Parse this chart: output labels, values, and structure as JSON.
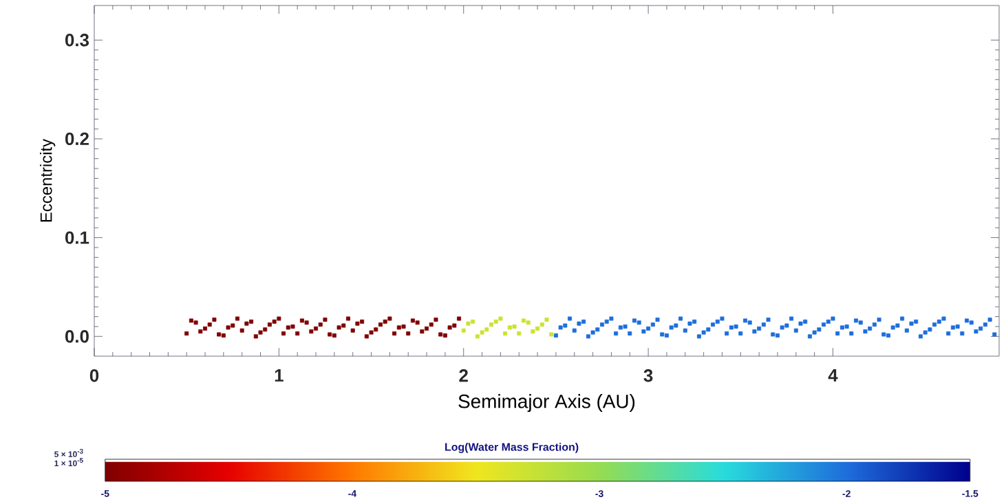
{
  "chart_data": {
    "type": "scatter",
    "xlabel": "Semimajor Axis (AU)",
    "ylabel": "Eccentricity",
    "clabel": "Log(Water Mass Fraction)",
    "xlim": [
      0,
      4.9
    ],
    "ylim": [
      -0.02,
      0.335
    ],
    "xticks": [
      0,
      1,
      2,
      3,
      4
    ],
    "yticks": [
      {
        "value": 0,
        "label": "0.0"
      },
      {
        "value": 0.1,
        "label": "0.1"
      },
      {
        "value": 0.2,
        "label": "0.2"
      },
      {
        "value": 0.3,
        "label": "0.3"
      }
    ],
    "clim": [
      -5,
      -1.5
    ],
    "cticks": [
      -5,
      -4,
      -3,
      -2,
      -1.5
    ],
    "marker": "square",
    "annotations": [
      "5 × 10$^{-3}$",
      "1 × 10$^{-5}$"
    ],
    "x": [
      0.5,
      0.525,
      0.55,
      0.575,
      0.6,
      0.625,
      0.65,
      0.675,
      0.7,
      0.725,
      0.75,
      0.775,
      0.8,
      0.825,
      0.85,
      0.875,
      0.9,
      0.925,
      0.95,
      0.975,
      1,
      1.025,
      1.05,
      1.075,
      1.1,
      1.125,
      1.15,
      1.175,
      1.2,
      1.225,
      1.25,
      1.275,
      1.3,
      1.325,
      1.35,
      1.375,
      1.4,
      1.425,
      1.45,
      1.475,
      1.5,
      1.525,
      1.55,
      1.575,
      1.6,
      1.625,
      1.65,
      1.675,
      1.7,
      1.725,
      1.75,
      1.775,
      1.8,
      1.825,
      1.85,
      1.875,
      1.9,
      1.925,
      1.95,
      1.975,
      2,
      2.025,
      2.05,
      2.075,
      2.1,
      2.125,
      2.15,
      2.175,
      2.2,
      2.225,
      2.25,
      2.275,
      2.3,
      2.325,
      2.35,
      2.375,
      2.4,
      2.425,
      2.45,
      2.475,
      2.5,
      2.525,
      2.55,
      2.575,
      2.6,
      2.625,
      2.65,
      2.675,
      2.7,
      2.725,
      2.75,
      2.775,
      2.8,
      2.825,
      2.85,
      2.875,
      2.9,
      2.925,
      2.95,
      2.975,
      3,
      3.025,
      3.05,
      3.075,
      3.1,
      3.125,
      3.15,
      3.175,
      3.2,
      3.225,
      3.25,
      3.275,
      3.3,
      3.325,
      3.35,
      3.375,
      3.4,
      3.425,
      3.45,
      3.475,
      3.5,
      3.525,
      3.55,
      3.575,
      3.6,
      3.625,
      3.65,
      3.675,
      3.7,
      3.725,
      3.75,
      3.775,
      3.8,
      3.825,
      3.85,
      3.875,
      3.9,
      3.925,
      3.95,
      3.975,
      4,
      4.025,
      4.05,
      4.075,
      4.1,
      4.125,
      4.15,
      4.175,
      4.2,
      4.225,
      4.25,
      4.275,
      4.3,
      4.325,
      4.35,
      4.375,
      4.4,
      4.425,
      4.45,
      4.475,
      4.5,
      4.525,
      4.55,
      4.575,
      4.6,
      4.625,
      4.65,
      4.675,
      4.7,
      4.725,
      4.75,
      4.775,
      4.8,
      4.825,
      4.85,
      4.875
    ],
    "values": [
      0.003,
      0.016,
      0.014,
      0.005,
      0.008,
      0.012,
      0.017,
      0.002,
      0.001,
      0.009,
      0.011,
      0.018,
      0.006,
      0.013,
      0.015,
      0,
      0.004,
      0.007,
      0.012,
      0.015,
      0.018,
      0.003,
      0.009,
      0.01,
      0.003,
      0.016,
      0.014,
      0.005,
      0.008,
      0.012,
      0.017,
      0.002,
      0.001,
      0.009,
      0.011,
      0.018,
      0.006,
      0.013,
      0.015,
      0,
      0.004,
      0.007,
      0.012,
      0.015,
      0.018,
      0.003,
      0.009,
      0.01,
      0.003,
      0.016,
      0.014,
      0.005,
      0.008,
      0.012,
      0.017,
      0.002,
      0.001,
      0.009,
      0.011,
      0.018,
      0.006,
      0.013,
      0.015,
      0,
      0.004,
      0.007,
      0.012,
      0.015,
      0.018,
      0.003,
      0.009,
      0.01,
      0.003,
      0.016,
      0.014,
      0.005,
      0.008,
      0.012,
      0.017,
      0.002,
      0.001,
      0.009,
      0.011,
      0.018,
      0.006,
      0.013,
      0.015,
      0,
      0.004,
      0.007,
      0.012,
      0.015,
      0.018,
      0.003,
      0.009,
      0.01,
      0.003,
      0.016,
      0.014,
      0.005,
      0.008,
      0.012,
      0.017,
      0.002,
      0.001,
      0.009,
      0.011,
      0.018,
      0.006,
      0.013,
      0.015,
      0,
      0.004,
      0.007,
      0.012,
      0.015,
      0.018,
      0.003,
      0.009,
      0.01,
      0.003,
      0.016,
      0.014,
      0.005,
      0.008,
      0.012,
      0.017,
      0.002,
      0.001,
      0.009,
      0.011,
      0.018,
      0.006,
      0.013,
      0.015,
      0,
      0.004,
      0.007,
      0.012,
      0.015,
      0.018,
      0.003,
      0.009,
      0.01,
      0.003,
      0.016,
      0.014,
      0.005,
      0.008,
      0.012,
      0.017,
      0.002,
      0.001,
      0.009,
      0.011,
      0.018,
      0.006,
      0.013,
      0.015,
      0,
      0.004,
      0.007,
      0.012,
      0.015,
      0.018,
      0.003,
      0.009,
      0.01,
      0.003,
      0.016,
      0.014,
      0.005,
      0.008,
      0.012,
      0.017,
      0.002
    ],
    "cvalues": [
      -5,
      -5,
      -5,
      -5,
      -5,
      -5,
      -5,
      -5,
      -5,
      -5,
      -5,
      -5,
      -5,
      -5,
      -5,
      -5,
      -5,
      -5,
      -5,
      -5,
      -5,
      -5,
      -5,
      -5,
      -5,
      -5,
      -5,
      -5,
      -5,
      -5,
      -5,
      -5,
      -5,
      -5,
      -5,
      -5,
      -5,
      -5,
      -5,
      -5,
      -5,
      -5,
      -5,
      -5,
      -5,
      -5,
      -5,
      -5,
      -5,
      -5,
      -5,
      -5,
      -5,
      -5,
      -5,
      -5,
      -5,
      -5,
      -5,
      -5,
      -3.3,
      -3.3,
      -3.3,
      -3.3,
      -3.3,
      -3.3,
      -3.3,
      -3.3,
      -3.3,
      -3.3,
      -3.3,
      -3.3,
      -3.3,
      -3.3,
      -3.3,
      -3.3,
      -3.3,
      -3.3,
      -3.3,
      -3.3,
      -2,
      -2,
      -2,
      -2,
      -2,
      -2,
      -2,
      -2,
      -2,
      -2,
      -2,
      -2,
      -2,
      -2,
      -2,
      -2,
      -2,
      -2,
      -2,
      -2,
      -2,
      -2,
      -2,
      -2,
      -2,
      -2,
      -2,
      -2,
      -2,
      -2,
      -2,
      -2,
      -2,
      -2,
      -2,
      -2,
      -2,
      -2,
      -2,
      -2,
      -2,
      -2,
      -2,
      -2,
      -2,
      -2,
      -2,
      -2,
      -2,
      -2,
      -2,
      -2,
      -2,
      -2,
      -2,
      -2,
      -2,
      -2,
      -2,
      -2,
      -2,
      -2,
      -2,
      -2,
      -2,
      -2,
      -2,
      -2,
      -2,
      -2,
      -2,
      -2,
      -2,
      -2,
      -2,
      -2,
      -2,
      -2,
      -2,
      -2,
      -2,
      -2,
      -2,
      -2,
      -2,
      -2,
      -2,
      -2,
      -2,
      -2,
      -2,
      -2,
      -2,
      -2,
      -2,
      -2
    ]
  }
}
